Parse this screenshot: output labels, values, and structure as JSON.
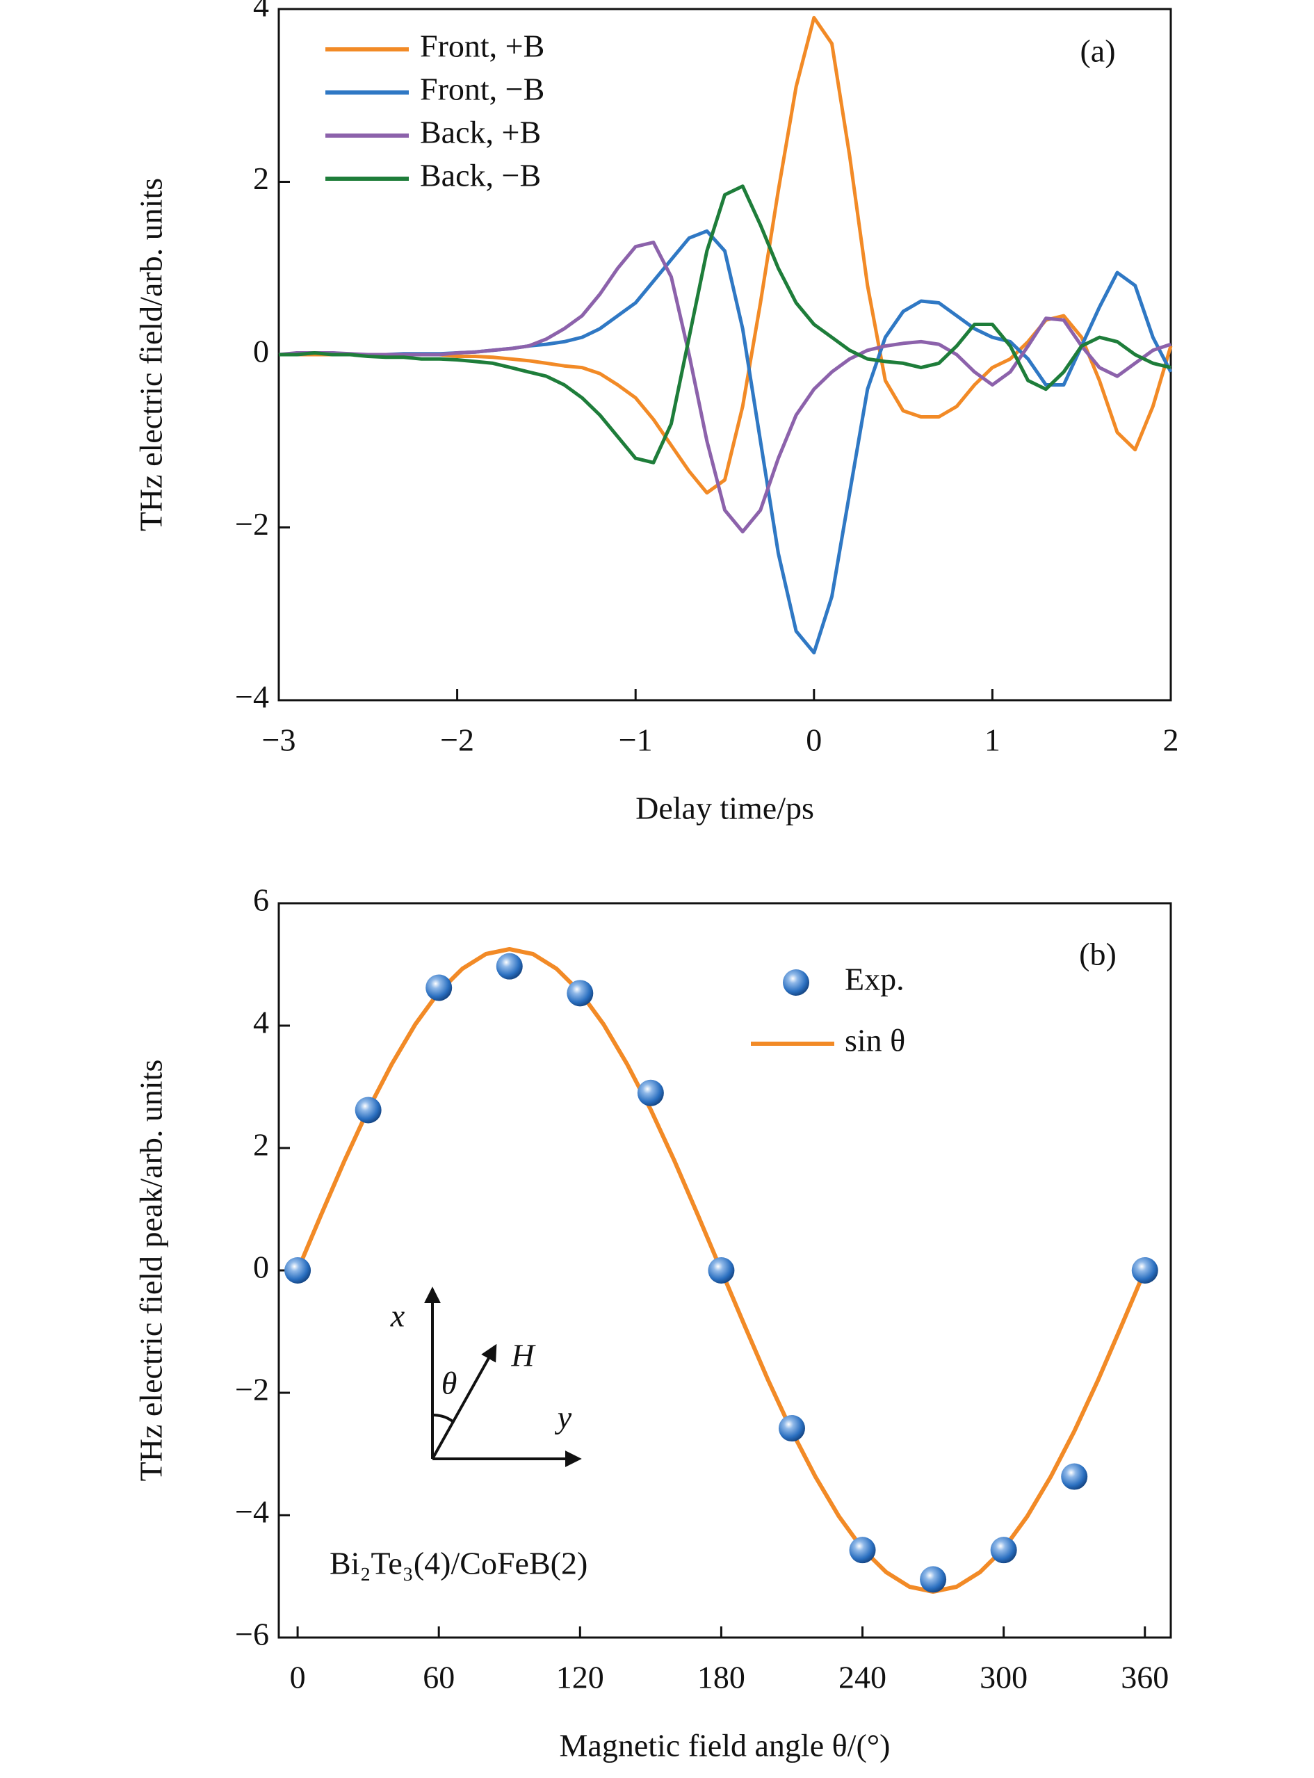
{
  "chart_data": [
    {
      "type": "line",
      "xlabel": "Delay time/ps",
      "ylabel": "THz electric field/arb. units",
      "x": [
        -3.0,
        -2.9,
        -2.8,
        -2.7,
        -2.6,
        -2.5,
        -2.4,
        -2.3,
        -2.2,
        -2.1,
        -2.0,
        -1.9,
        -1.8,
        -1.7,
        -1.6,
        -1.5,
        -1.4,
        -1.3,
        -1.2,
        -1.1,
        -1.0,
        -0.9,
        -0.8,
        -0.7,
        -0.6,
        -0.5,
        -0.4,
        -0.3,
        -0.2,
        -0.1,
        0,
        0.1,
        0.2,
        0.3,
        0.4,
        0.5,
        0.6,
        0.7,
        0.8,
        0.9,
        1.0,
        1.1,
        1.2,
        1.3,
        1.4,
        1.5,
        1.6,
        1.7,
        1.8,
        1.9,
        2.0
      ],
      "series": [
        {
          "name": "Front, +B",
          "color": "#f28a26",
          "values": [
            0,
            0,
            0,
            0,
            0,
            0,
            0,
            0,
            0,
            0,
            -0.02,
            -0.02,
            -0.03,
            -0.05,
            -0.07,
            -0.1,
            -0.13,
            -0.15,
            -0.22,
            -0.35,
            -0.5,
            -0.75,
            -1.05,
            -1.35,
            -1.6,
            -1.45,
            -0.6,
            0.6,
            1.9,
            3.1,
            3.9,
            3.6,
            2.3,
            0.8,
            -0.3,
            -0.65,
            -0.72,
            -0.72,
            -0.6,
            -0.35,
            -0.15,
            -0.05,
            0.15,
            0.4,
            0.45,
            0.2,
            -0.3,
            -0.9,
            -1.1,
            -0.6,
            0.1
          ]
        },
        {
          "name": "Front, −B",
          "color": "#2f78c4",
          "values": [
            0,
            0,
            0.02,
            0.02,
            0,
            0,
            0,
            0.01,
            0.01,
            0.01,
            0.02,
            0.03,
            0.05,
            0.07,
            0.1,
            0.12,
            0.15,
            0.2,
            0.3,
            0.45,
            0.6,
            0.85,
            1.1,
            1.35,
            1.43,
            1.2,
            0.3,
            -1.0,
            -2.3,
            -3.2,
            -3.45,
            -2.8,
            -1.6,
            -0.4,
            0.2,
            0.5,
            0.62,
            0.6,
            0.45,
            0.3,
            0.2,
            0.15,
            -0.05,
            -0.35,
            -0.35,
            0.1,
            0.55,
            0.95,
            0.8,
            0.2,
            -0.2
          ]
        },
        {
          "name": "Back, +B",
          "color": "#8c62ab",
          "values": [
            0,
            0.02,
            0.02,
            0.02,
            0.01,
            0,
            0,
            0,
            0,
            0,
            0.02,
            0.03,
            0.05,
            0.07,
            0.1,
            0.18,
            0.3,
            0.45,
            0.7,
            1.0,
            1.25,
            1.3,
            0.9,
            0.0,
            -1.0,
            -1.8,
            -2.05,
            -1.8,
            -1.2,
            -0.7,
            -0.4,
            -0.2,
            -0.05,
            0.05,
            0.1,
            0.13,
            0.15,
            0.12,
            0.0,
            -0.2,
            -0.35,
            -0.2,
            0.1,
            0.42,
            0.4,
            0.1,
            -0.15,
            -0.25,
            -0.1,
            0.05,
            0.12
          ]
        },
        {
          "name": "Back, −B",
          "color": "#1e7d3a",
          "values": [
            0,
            0,
            0.02,
            0,
            0,
            -0.02,
            -0.03,
            -0.03,
            -0.05,
            -0.05,
            -0.06,
            -0.08,
            -0.1,
            -0.15,
            -0.2,
            -0.25,
            -0.35,
            -0.5,
            -0.7,
            -0.95,
            -1.2,
            -1.25,
            -0.8,
            0.2,
            1.2,
            1.85,
            1.95,
            1.5,
            1.0,
            0.6,
            0.35,
            0.2,
            0.05,
            -0.05,
            -0.08,
            -0.1,
            -0.15,
            -0.1,
            0.1,
            0.35,
            0.35,
            0.1,
            -0.3,
            -0.4,
            -0.2,
            0.1,
            0.2,
            0.15,
            0.0,
            -0.1,
            -0.15
          ]
        }
      ],
      "xlim": [
        -3,
        2
      ],
      "ylim": [
        -4,
        4
      ],
      "xticks": [
        {
          "value": -3,
          "label": "−3"
        },
        {
          "value": -2,
          "label": "−2"
        },
        {
          "value": -1,
          "label": "−1"
        },
        0,
        1,
        2
      ],
      "yticks": [
        {
          "value": -4,
          "label": "−4"
        },
        {
          "value": -2,
          "label": "−2"
        },
        0,
        2,
        4
      ],
      "legend": "upper left",
      "annotations": [
        "(a)"
      ]
    },
    {
      "type": "scatter",
      "xlabel": "Magnetic field angle θ/(°)",
      "ylabel": "THz electric field peak/arb. units",
      "series": [
        {
          "name": "Exp.",
          "color": "#2a6fc0",
          "type": "scatter",
          "x": [
            0,
            30,
            60,
            90,
            120,
            150,
            180,
            210,
            240,
            270,
            300,
            330,
            360
          ],
          "values": [
            0,
            2.62,
            4.62,
            4.97,
            4.53,
            2.9,
            0,
            -2.58,
            -4.57,
            -5.05,
            -4.57,
            -3.37,
            0
          ]
        },
        {
          "name": "sin θ",
          "color": "#f28a26",
          "type": "line",
          "x": [
            0,
            10,
            20,
            30,
            40,
            50,
            60,
            70,
            80,
            90,
            100,
            110,
            120,
            130,
            140,
            150,
            160,
            170,
            180,
            190,
            200,
            210,
            220,
            230,
            240,
            250,
            260,
            270,
            280,
            290,
            300,
            310,
            320,
            330,
            340,
            350,
            360
          ],
          "values": [
            0,
            0.91,
            1.8,
            2.63,
            3.37,
            4.02,
            4.55,
            4.93,
            5.17,
            5.25,
            5.17,
            4.93,
            4.55,
            4.02,
            3.37,
            2.63,
            1.8,
            0.91,
            0,
            -0.91,
            -1.8,
            -2.63,
            -3.37,
            -4.02,
            -4.55,
            -4.93,
            -5.17,
            -5.25,
            -5.17,
            -4.93,
            -4.55,
            -4.02,
            -3.37,
            -2.63,
            -1.8,
            -0.91,
            0
          ]
        }
      ],
      "xlim": [
        -8,
        371
      ],
      "ylim": [
        -6,
        6
      ],
      "xticks": [
        0,
        60,
        120,
        180,
        240,
        300,
        360
      ],
      "yticks": [
        {
          "value": -6,
          "label": "−6"
        },
        {
          "value": -4,
          "label": "−4"
        },
        {
          "value": -2,
          "label": "−2"
        },
        0,
        2,
        4,
        6
      ],
      "legend": "upper right",
      "annotations": [
        "(b)",
        "Bi₂Te₃(4)/CoFeB(2)",
        "x",
        "θ",
        "H",
        "y"
      ]
    }
  ]
}
